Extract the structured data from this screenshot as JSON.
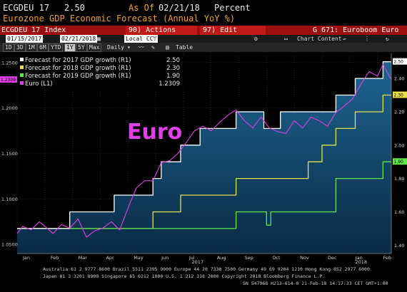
{
  "header": {
    "ticker": "ECGDEU 17",
    "value": "2.50",
    "as_of_label": "As Of",
    "as_of_date": "02/21/18",
    "units": "Percent",
    "subtitle": "Eurozone GDP Economic Forecast (Annual YoY %)"
  },
  "toolbar": {
    "index_label": "ECGDEU 17 Index",
    "actions_label": "90) Actions",
    "edit_label": "97) Edit",
    "page_title": "G 671: Euroboom Euro"
  },
  "date_bar": {
    "start_date": "01/15/2017",
    "end_date": "02/21/2018",
    "currency": "Local CCY",
    "chart_content": "Chart Content"
  },
  "period_tabs": [
    "1D",
    "3D",
    "1M",
    "6M",
    "YTD",
    "1Y",
    "5Y",
    "Max"
  ],
  "active_period": "1Y",
  "interval": "Daily",
  "table_label": "Table",
  "legend": [
    {
      "label": "Forecast for 2017 GDP growth (R1)",
      "value": "2.50",
      "color": "#ffffff"
    },
    {
      "label": "Forecast for 2018 GDP growth (R1)",
      "value": "2.30",
      "color": "#e8e04a"
    },
    {
      "label": "Forecast for 2019 GDP growth (R1)",
      "value": "1.90",
      "color": "#5fe84a"
    },
    {
      "label": "Euro (L1)",
      "value": "1.2309",
      "color": "#e040e8"
    }
  ],
  "footer": {
    "line1": "Australia 61 2 9777 8600 Brazil 5511 2395 9000 Europe 44 20 7330 7500 Germany 49 69 9204 1210 Hong Kong 852 2977 6000",
    "line2": "Japan 81 3 3201 8900          Singapore 65 6212 1000          U.S. 1 212 318 2000          Copyright 2018 Bloomberg Finance L.P.",
    "line3": "SN 547968 H213-614-0 21-Feb-18 14:17:33 CET  GMT+1:00"
  },
  "chart_data": {
    "type": "line",
    "annotation": "Euro",
    "x_months": [
      "Jan",
      "Feb",
      "Mar",
      "Apr",
      "May",
      "Jun",
      "Jul",
      "Aug",
      "Sep",
      "Oct",
      "Nov",
      "Dec",
      "Jan",
      "Feb"
    ],
    "x_years": [
      "2017",
      "2018"
    ],
    "left_axis": {
      "ticks": [
        "1.0500",
        "1.1000",
        "1.1500",
        "1.2000",
        "1.2500"
      ],
      "ylim": [
        1.04,
        1.26
      ],
      "current_label": "1.2309"
    },
    "right_axis": {
      "ticks": [
        "1.40",
        "1.60",
        "1.80",
        "2.00",
        "2.20",
        "2.40"
      ],
      "ylim": [
        1.35,
        2.55
      ],
      "current_labels": [
        "2.50",
        "2.30",
        "1.90"
      ]
    },
    "series": [
      {
        "name": "Forecast for 2017 GDP growth (R1)",
        "axis": "right",
        "color": "#ffffff",
        "x": [
          0,
          1.9,
          1.9,
          3.5,
          3.5,
          4.9,
          4.9,
          5.2,
          5.2,
          5.9,
          5.9,
          6.6,
          6.6,
          7.9,
          7.9,
          8.9,
          8.9,
          9.5,
          9.5,
          11.5,
          11.5,
          12.2,
          12.2,
          13.2,
          13.2,
          13.5
        ],
        "y": [
          1.5,
          1.5,
          1.6,
          1.6,
          1.7,
          1.7,
          1.8,
          1.8,
          1.9,
          1.9,
          2.0,
          2.0,
          2.1,
          2.1,
          2.2,
          2.2,
          2.1,
          2.1,
          2.2,
          2.2,
          2.3,
          2.3,
          2.4,
          2.4,
          2.5,
          2.5
        ]
      },
      {
        "name": "Forecast for 2018 GDP growth (R1)",
        "axis": "right",
        "color": "#e8e04a",
        "x": [
          0,
          1.9,
          1.9,
          3.5,
          3.5,
          4.9,
          4.9,
          5.2,
          5.2,
          5.9,
          5.9,
          6.6,
          6.6,
          7.9,
          7.9,
          8.9,
          8.9,
          10.5,
          10.5,
          11.0,
          11.0,
          11.5,
          11.5,
          12.2,
          12.2,
          13.2,
          13.2,
          13.5
        ],
        "y": [
          1.5,
          1.5,
          1.5,
          1.5,
          1.5,
          1.5,
          1.6,
          1.6,
          1.6,
          1.6,
          1.7,
          1.7,
          1.7,
          1.7,
          1.8,
          1.8,
          1.8,
          1.8,
          1.9,
          1.9,
          2.0,
          2.0,
          2.1,
          2.1,
          2.2,
          2.2,
          2.3,
          2.3
        ]
      },
      {
        "name": "Forecast for 2019 GDP growth (R1)",
        "axis": "right",
        "color": "#5fe84a",
        "x": [
          0,
          6.6,
          6.6,
          7.9,
          7.9,
          8.9,
          8.9,
          9.0,
          9.0,
          9.15,
          9.15,
          9.5,
          9.5,
          11.5,
          11.5,
          13.2,
          13.2,
          13.5
        ],
        "y": [
          1.5,
          1.5,
          1.5,
          1.5,
          1.6,
          1.6,
          1.6,
          1.6,
          1.52,
          1.52,
          1.6,
          1.6,
          1.6,
          1.6,
          1.8,
          1.8,
          1.9,
          1.9
        ]
      },
      {
        "name": "Euro (L1)",
        "axis": "left",
        "color": "#e040e8",
        "x": [
          0,
          0.2,
          0.5,
          0.8,
          1.0,
          1.3,
          1.6,
          1.9,
          2.2,
          2.5,
          2.8,
          3.1,
          3.4,
          3.7,
          4.0,
          4.3,
          4.6,
          4.9,
          5.2,
          5.5,
          5.8,
          6.1,
          6.4,
          6.7,
          7.0,
          7.3,
          7.6,
          7.9,
          8.2,
          8.5,
          8.8,
          9.1,
          9.4,
          9.7,
          10.0,
          10.3,
          10.6,
          10.9,
          11.2,
          11.5,
          11.8,
          12.1,
          12.4,
          12.7,
          13.0,
          13.2,
          13.5
        ],
        "y": [
          1.062,
          1.07,
          1.066,
          1.075,
          1.07,
          1.062,
          1.072,
          1.068,
          1.078,
          1.058,
          1.065,
          1.068,
          1.075,
          1.066,
          1.09,
          1.112,
          1.12,
          1.12,
          1.14,
          1.142,
          1.15,
          1.162,
          1.175,
          1.18,
          1.175,
          1.184,
          1.192,
          1.198,
          1.186,
          1.178,
          1.19,
          1.178,
          1.174,
          1.172,
          1.186,
          1.178,
          1.19,
          1.186,
          1.18,
          1.195,
          1.202,
          1.21,
          1.226,
          1.24,
          1.235,
          1.248,
          1.231
        ]
      }
    ]
  }
}
